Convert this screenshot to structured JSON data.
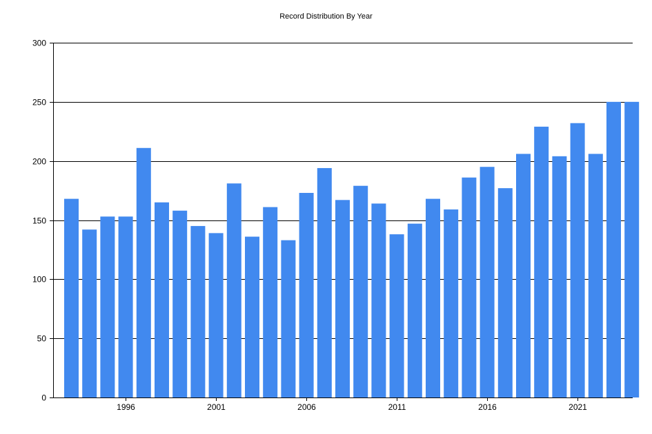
{
  "chart_data": {
    "type": "bar",
    "title": "Record Distribution By Year",
    "xlabel": "",
    "ylabel": "",
    "ylim": [
      0,
      300
    ],
    "yticks": [
      0,
      50,
      100,
      150,
      200,
      250,
      300
    ],
    "xtick_labels": [
      "1996",
      "2001",
      "2006",
      "2011",
      "2016",
      "2021"
    ],
    "grid": "horizontal",
    "bar_color": "#4189ef",
    "categories": [
      1993,
      1994,
      1995,
      1996,
      1997,
      1998,
      1999,
      2000,
      2001,
      2002,
      2003,
      2004,
      2005,
      2006,
      2007,
      2008,
      2009,
      2010,
      2011,
      2012,
      2013,
      2014,
      2015,
      2016,
      2017,
      2018,
      2019,
      2020,
      2021,
      2022,
      2023,
      2024
    ],
    "values": [
      168,
      142,
      153,
      153,
      211,
      165,
      158,
      145,
      139,
      181,
      136,
      161,
      133,
      173,
      194,
      167,
      179,
      164,
      138,
      147,
      168,
      159,
      186,
      195,
      177,
      206,
      229,
      204,
      232,
      206,
      250,
      250
    ]
  }
}
